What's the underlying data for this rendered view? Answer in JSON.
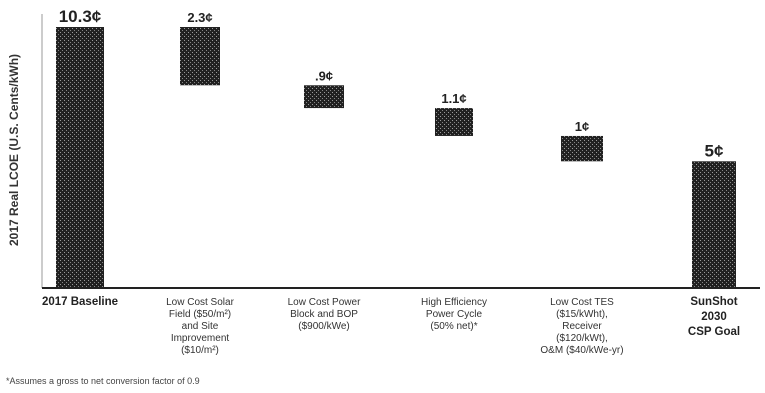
{
  "chart_data": {
    "type": "bar",
    "subtype": "waterfall",
    "ylabel": "2017 Real LCOE (U.S. Cents/kWh)",
    "ylim": [
      0,
      11
    ],
    "grid": false,
    "legend": "none",
    "categories": [
      [
        "2017 Baseline"
      ],
      [
        "Low Cost Solar",
        "Field ($50/m²)",
        "and Site",
        "Improvement",
        "($10/m²)"
      ],
      [
        "Low Cost Power",
        "Block and BOP",
        "($900/kWe)"
      ],
      [
        "High Efficiency",
        "Power Cycle",
        "(50% net)*"
      ],
      [
        "Low Cost TES",
        "($15/kWht),",
        "Receiver",
        "($120/kWt),",
        "O&M ($40/kWe-yr)"
      ],
      [
        "SunShot",
        "2030",
        "CSP Goal"
      ]
    ],
    "bars": [
      {
        "label": "10.3¢",
        "value": 10.3,
        "start": 0,
        "end": 10.3,
        "kind": "total"
      },
      {
        "label": "2.3¢",
        "value": 2.3,
        "start": 10.3,
        "end": 8.0,
        "kind": "decrease"
      },
      {
        "label": ".9¢",
        "value": 0.9,
        "start": 8.0,
        "end": 7.1,
        "kind": "decrease"
      },
      {
        "label": "1.1¢",
        "value": 1.1,
        "start": 7.1,
        "end": 6.0,
        "kind": "decrease"
      },
      {
        "label": "1¢",
        "value": 1.0,
        "start": 6.0,
        "end": 5.0,
        "kind": "decrease"
      },
      {
        "label": "5¢",
        "value": 5.0,
        "start": 0,
        "end": 5.0,
        "kind": "total"
      }
    ],
    "colors": [
      "#1f1f1f",
      "#2a2a2a",
      "#9c9c9c",
      "#7a7a7a",
      "#2e2e2e",
      "#1f1f1f"
    ],
    "footnote": "*Assumes a gross to net conversion factor of 0.9"
  }
}
